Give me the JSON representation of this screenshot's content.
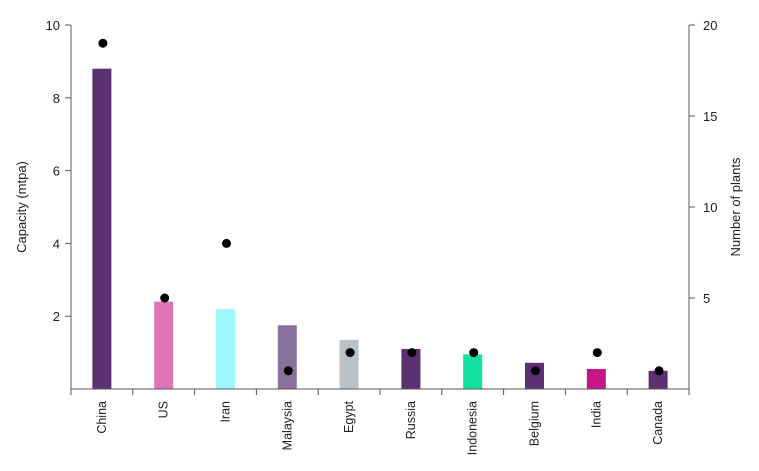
{
  "chart_data": {
    "type": "bar",
    "categories": [
      "China",
      "US",
      "Iran",
      "Malaysia",
      "Egypt",
      "Russia",
      "Indonesia",
      "Belgium",
      "India",
      "Canada"
    ],
    "bar_colors": [
      "#5b3171",
      "#df74b9",
      "#9ef7fd",
      "#8b6f9d",
      "#b8c1c7",
      "#5b3171",
      "#14e0a0",
      "#5b3171",
      "#c51687",
      "#5b3171"
    ],
    "marker_color": "#000000",
    "series": [
      {
        "axis": "left",
        "kind": "bar",
        "values": [
          8.8,
          2.4,
          2.2,
          1.75,
          1.35,
          1.1,
          0.95,
          0.72,
          0.55,
          0.5
        ]
      },
      {
        "axis": "right",
        "kind": "scatter",
        "values": [
          19,
          5,
          8,
          1,
          2,
          2,
          2,
          1,
          2,
          1
        ]
      }
    ],
    "ylabel": "Capacity (mtpa)",
    "y2label": "Number of plants",
    "ylim": [
      0,
      10
    ],
    "y2lim": [
      0,
      20
    ],
    "yticks": [
      2,
      4,
      6,
      8,
      10
    ],
    "y2ticks": [
      5,
      10,
      15,
      20
    ],
    "grid": false,
    "legend": "none"
  }
}
